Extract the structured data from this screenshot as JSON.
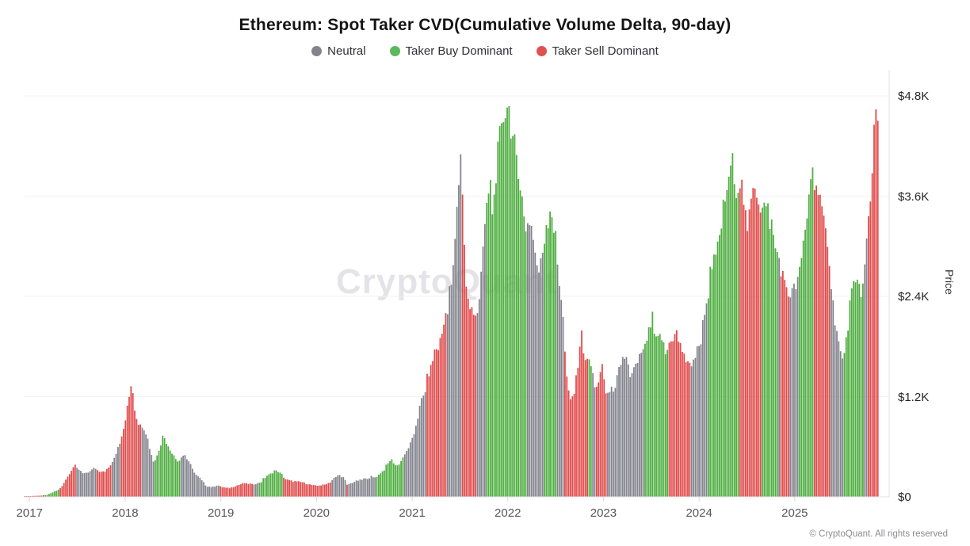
{
  "title": "Ethereum: Spot Taker CVD(Cumulative Volume Delta, 90-day)",
  "watermark": "CryptoQuant",
  "copyright": "© CryptoQuant. All rights reserved",
  "legend": [
    {
      "label": "Neutral",
      "class": "n",
      "color": "#83838e"
    },
    {
      "label": "Taker Buy Dominant",
      "class": "b",
      "color": "#5cb85c"
    },
    {
      "label": "Taker Sell Dominant",
      "class": "s",
      "color": "#e05252"
    }
  ],
  "y_axis": {
    "label": "Price",
    "ticks": [
      "$0",
      "$1.2K",
      "$2.4K",
      "$3.6K",
      "$4.8K"
    ],
    "values": [
      0,
      1200,
      2400,
      3600,
      4800
    ]
  },
  "x_axis": {
    "ticks": [
      "2017",
      "2018",
      "2019",
      "2020",
      "2021",
      "2022",
      "2023",
      "2024",
      "2025"
    ]
  },
  "chart_data": {
    "type": "bar",
    "title": "Ethereum: Spot Taker CVD(Cumulative Volume Delta, 90-day)",
    "ylabel": "Price",
    "ylim": [
      0,
      4800
    ],
    "grid": true,
    "legend_position": "top",
    "x_unit": "decimal_year",
    "classes": {
      "n": "Neutral",
      "b": "Taker Buy Dominant",
      "s": "Taker Sell Dominant"
    },
    "colors": {
      "n": "#84848e",
      "b": "#4fae41",
      "s": "#e14b4b"
    },
    "points": [
      [
        2016.94,
        8,
        "s"
      ],
      [
        2017.05,
        12,
        "s"
      ],
      [
        2017.12,
        15,
        "s"
      ],
      [
        2017.18,
        25,
        "b"
      ],
      [
        2017.24,
        55,
        "b"
      ],
      [
        2017.29,
        80,
        "b"
      ],
      [
        2017.33,
        120,
        "s"
      ],
      [
        2017.4,
        260,
        "s"
      ],
      [
        2017.47,
        395,
        "s"
      ],
      [
        2017.5,
        330,
        "n"
      ],
      [
        2017.55,
        280,
        "n"
      ],
      [
        2017.62,
        300,
        "n"
      ],
      [
        2017.68,
        345,
        "n"
      ],
      [
        2017.71,
        300,
        "s"
      ],
      [
        2017.76,
        290,
        "s"
      ],
      [
        2017.82,
        345,
        "s"
      ],
      [
        2017.86,
        420,
        "n"
      ],
      [
        2017.93,
        640,
        "n"
      ],
      [
        2017.97,
        760,
        "s"
      ],
      [
        2018.02,
        1080,
        "s"
      ],
      [
        2018.06,
        1390,
        "s"
      ],
      [
        2018.1,
        1010,
        "s"
      ],
      [
        2018.14,
        870,
        "s"
      ],
      [
        2018.2,
        830,
        "n"
      ],
      [
        2018.25,
        580,
        "n"
      ],
      [
        2018.29,
        420,
        "n"
      ],
      [
        2018.32,
        470,
        "b"
      ],
      [
        2018.39,
        740,
        "b"
      ],
      [
        2018.45,
        590,
        "b"
      ],
      [
        2018.51,
        480,
        "b"
      ],
      [
        2018.55,
        420,
        "b"
      ],
      [
        2018.59,
        510,
        "n"
      ],
      [
        2018.65,
        450,
        "n"
      ],
      [
        2018.71,
        300,
        "n"
      ],
      [
        2018.78,
        215,
        "n"
      ],
      [
        2018.84,
        130,
        "n"
      ],
      [
        2018.9,
        115,
        "n"
      ],
      [
        2018.96,
        140,
        "n"
      ],
      [
        2019.01,
        115,
        "s"
      ],
      [
        2019.08,
        105,
        "s"
      ],
      [
        2019.16,
        135,
        "s"
      ],
      [
        2019.24,
        165,
        "s"
      ],
      [
        2019.31,
        150,
        "s"
      ],
      [
        2019.36,
        160,
        "n"
      ],
      [
        2019.41,
        175,
        "b"
      ],
      [
        2019.48,
        255,
        "b"
      ],
      [
        2019.56,
        315,
        "b"
      ],
      [
        2019.61,
        290,
        "b"
      ],
      [
        2019.67,
        215,
        "s"
      ],
      [
        2019.75,
        185,
        "s"
      ],
      [
        2019.83,
        180,
        "s"
      ],
      [
        2019.91,
        150,
        "s"
      ],
      [
        2019.99,
        132,
        "s"
      ],
      [
        2020.07,
        145,
        "s"
      ],
      [
        2020.13,
        170,
        "s"
      ],
      [
        2020.18,
        225,
        "n"
      ],
      [
        2020.23,
        265,
        "n"
      ],
      [
        2020.28,
        225,
        "n"
      ],
      [
        2020.31,
        140,
        "s"
      ],
      [
        2020.35,
        165,
        "n"
      ],
      [
        2020.44,
        200,
        "n"
      ],
      [
        2020.53,
        225,
        "n"
      ],
      [
        2020.59,
        235,
        "n"
      ],
      [
        2020.63,
        245,
        "b"
      ],
      [
        2020.7,
        330,
        "b"
      ],
      [
        2020.77,
        450,
        "b"
      ],
      [
        2020.83,
        370,
        "b"
      ],
      [
        2020.89,
        440,
        "b"
      ],
      [
        2020.93,
        520,
        "n"
      ],
      [
        2021.0,
        700,
        "n"
      ],
      [
        2021.07,
        1050,
        "n"
      ],
      [
        2021.12,
        1250,
        "n"
      ],
      [
        2021.15,
        1400,
        "s"
      ],
      [
        2021.22,
        1700,
        "s"
      ],
      [
        2021.29,
        1850,
        "s"
      ],
      [
        2021.33,
        2080,
        "s"
      ],
      [
        2021.37,
        2250,
        "n"
      ],
      [
        2021.42,
        2700,
        "n"
      ],
      [
        2021.46,
        3400,
        "n"
      ],
      [
        2021.5,
        4160,
        "n"
      ],
      [
        2021.53,
        3300,
        "s"
      ],
      [
        2021.56,
        2450,
        "s"
      ],
      [
        2021.61,
        2250,
        "s"
      ],
      [
        2021.65,
        2150,
        "s"
      ],
      [
        2021.69,
        2350,
        "n"
      ],
      [
        2021.74,
        3050,
        "n"
      ],
      [
        2021.77,
        3250,
        "b"
      ],
      [
        2021.81,
        3780,
        "b"
      ],
      [
        2021.84,
        3350,
        "b"
      ],
      [
        2021.89,
        4150,
        "b"
      ],
      [
        2021.94,
        4500,
        "b"
      ],
      [
        2021.99,
        4780,
        "b"
      ],
      [
        2022.04,
        4400,
        "b"
      ],
      [
        2022.09,
        3900,
        "b"
      ],
      [
        2022.13,
        3750,
        "b"
      ],
      [
        2022.17,
        3150,
        "b"
      ],
      [
        2022.21,
        3350,
        "n"
      ],
      [
        2022.26,
        3100,
        "n"
      ],
      [
        2022.31,
        2650,
        "n"
      ],
      [
        2022.35,
        2900,
        "n"
      ],
      [
        2022.39,
        3250,
        "b"
      ],
      [
        2022.44,
        3520,
        "b"
      ],
      [
        2022.49,
        2950,
        "b"
      ],
      [
        2022.53,
        2550,
        "n"
      ],
      [
        2022.57,
        2050,
        "n"
      ],
      [
        2022.61,
        1450,
        "s"
      ],
      [
        2022.64,
        1110,
        "s"
      ],
      [
        2022.7,
        1300,
        "s"
      ],
      [
        2022.76,
        1950,
        "s"
      ],
      [
        2022.81,
        1600,
        "s"
      ],
      [
        2022.85,
        1680,
        "b"
      ],
      [
        2022.89,
        1380,
        "n"
      ],
      [
        2022.94,
        1320,
        "s"
      ],
      [
        2022.98,
        1600,
        "s"
      ],
      [
        2023.01,
        1280,
        "s"
      ],
      [
        2023.06,
        1230,
        "n"
      ],
      [
        2023.12,
        1350,
        "n"
      ],
      [
        2023.19,
        1620,
        "n"
      ],
      [
        2023.24,
        1680,
        "n"
      ],
      [
        2023.28,
        1420,
        "n"
      ],
      [
        2023.33,
        1560,
        "n"
      ],
      [
        2023.38,
        1620,
        "n"
      ],
      [
        2023.44,
        1850,
        "b"
      ],
      [
        2023.49,
        2090,
        "b"
      ],
      [
        2023.55,
        1870,
        "b"
      ],
      [
        2023.61,
        1890,
        "b"
      ],
      [
        2023.65,
        1700,
        "b"
      ],
      [
        2023.69,
        1920,
        "s"
      ],
      [
        2023.76,
        1950,
        "s"
      ],
      [
        2023.83,
        1680,
        "s"
      ],
      [
        2023.88,
        1580,
        "s"
      ],
      [
        2023.93,
        1620,
        "n"
      ],
      [
        2024.0,
        1800,
        "n"
      ],
      [
        2024.06,
        2300,
        "n"
      ],
      [
        2024.1,
        2450,
        "b"
      ],
      [
        2024.18,
        2950,
        "b"
      ],
      [
        2024.27,
        3550,
        "b"
      ],
      [
        2024.34,
        4020,
        "b"
      ],
      [
        2024.39,
        3650,
        "b"
      ],
      [
        2024.44,
        3680,
        "s"
      ],
      [
        2024.5,
        3100,
        "s"
      ],
      [
        2024.56,
        3850,
        "s"
      ],
      [
        2024.62,
        3500,
        "s"
      ],
      [
        2024.67,
        3480,
        "b"
      ],
      [
        2024.73,
        3380,
        "b"
      ],
      [
        2024.79,
        2950,
        "b"
      ],
      [
        2024.83,
        2850,
        "n"
      ],
      [
        2024.86,
        2650,
        "s"
      ],
      [
        2024.92,
        2450,
        "s"
      ],
      [
        2024.97,
        2400,
        "n"
      ],
      [
        2025.01,
        2600,
        "n"
      ],
      [
        2025.05,
        2700,
        "b"
      ],
      [
        2025.12,
        3350,
        "b"
      ],
      [
        2025.17,
        3980,
        "b"
      ],
      [
        2025.22,
        3700,
        "s"
      ],
      [
        2025.28,
        3350,
        "s"
      ],
      [
        2025.34,
        3050,
        "s"
      ],
      [
        2025.38,
        2450,
        "n"
      ],
      [
        2025.44,
        1950,
        "n"
      ],
      [
        2025.49,
        1620,
        "n"
      ],
      [
        2025.53,
        1850,
        "b"
      ],
      [
        2025.58,
        2450,
        "b"
      ],
      [
        2025.64,
        2550,
        "b"
      ],
      [
        2025.7,
        2480,
        "b"
      ],
      [
        2025.74,
        2950,
        "n"
      ],
      [
        2025.78,
        3450,
        "s"
      ],
      [
        2025.82,
        4300,
        "s"
      ],
      [
        2025.85,
        4760,
        "s"
      ],
      [
        2025.87,
        4450,
        "s"
      ]
    ]
  }
}
